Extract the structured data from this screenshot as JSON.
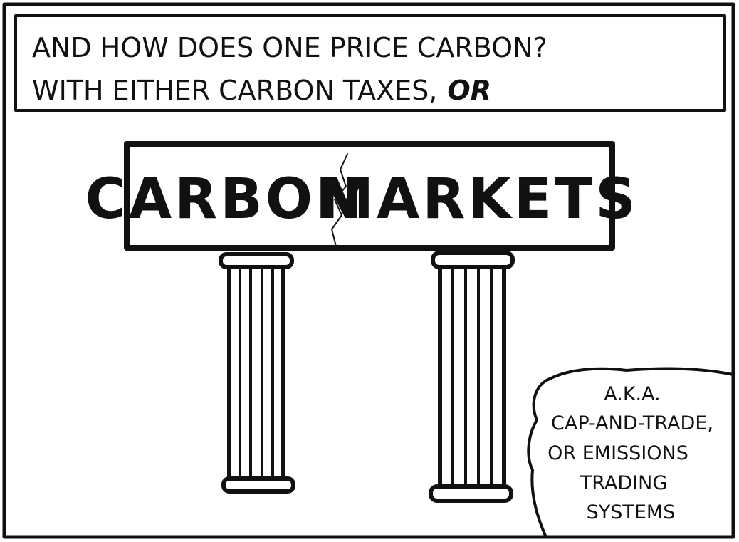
{
  "caption": {
    "lines": [
      "AND HOW DOES ONE PRICE CARBON?",
      "WITH EITHER CARBON TAXES,"
    ],
    "emphasis": "OR"
  },
  "sign": {
    "words": [
      "CARBON",
      "MARKETS"
    ]
  },
  "note": {
    "lines": [
      "A.K.A.",
      "CAP-AND-TRADE,",
      "OR EMISSIONS",
      "TRADING",
      "SYSTEMS"
    ]
  }
}
